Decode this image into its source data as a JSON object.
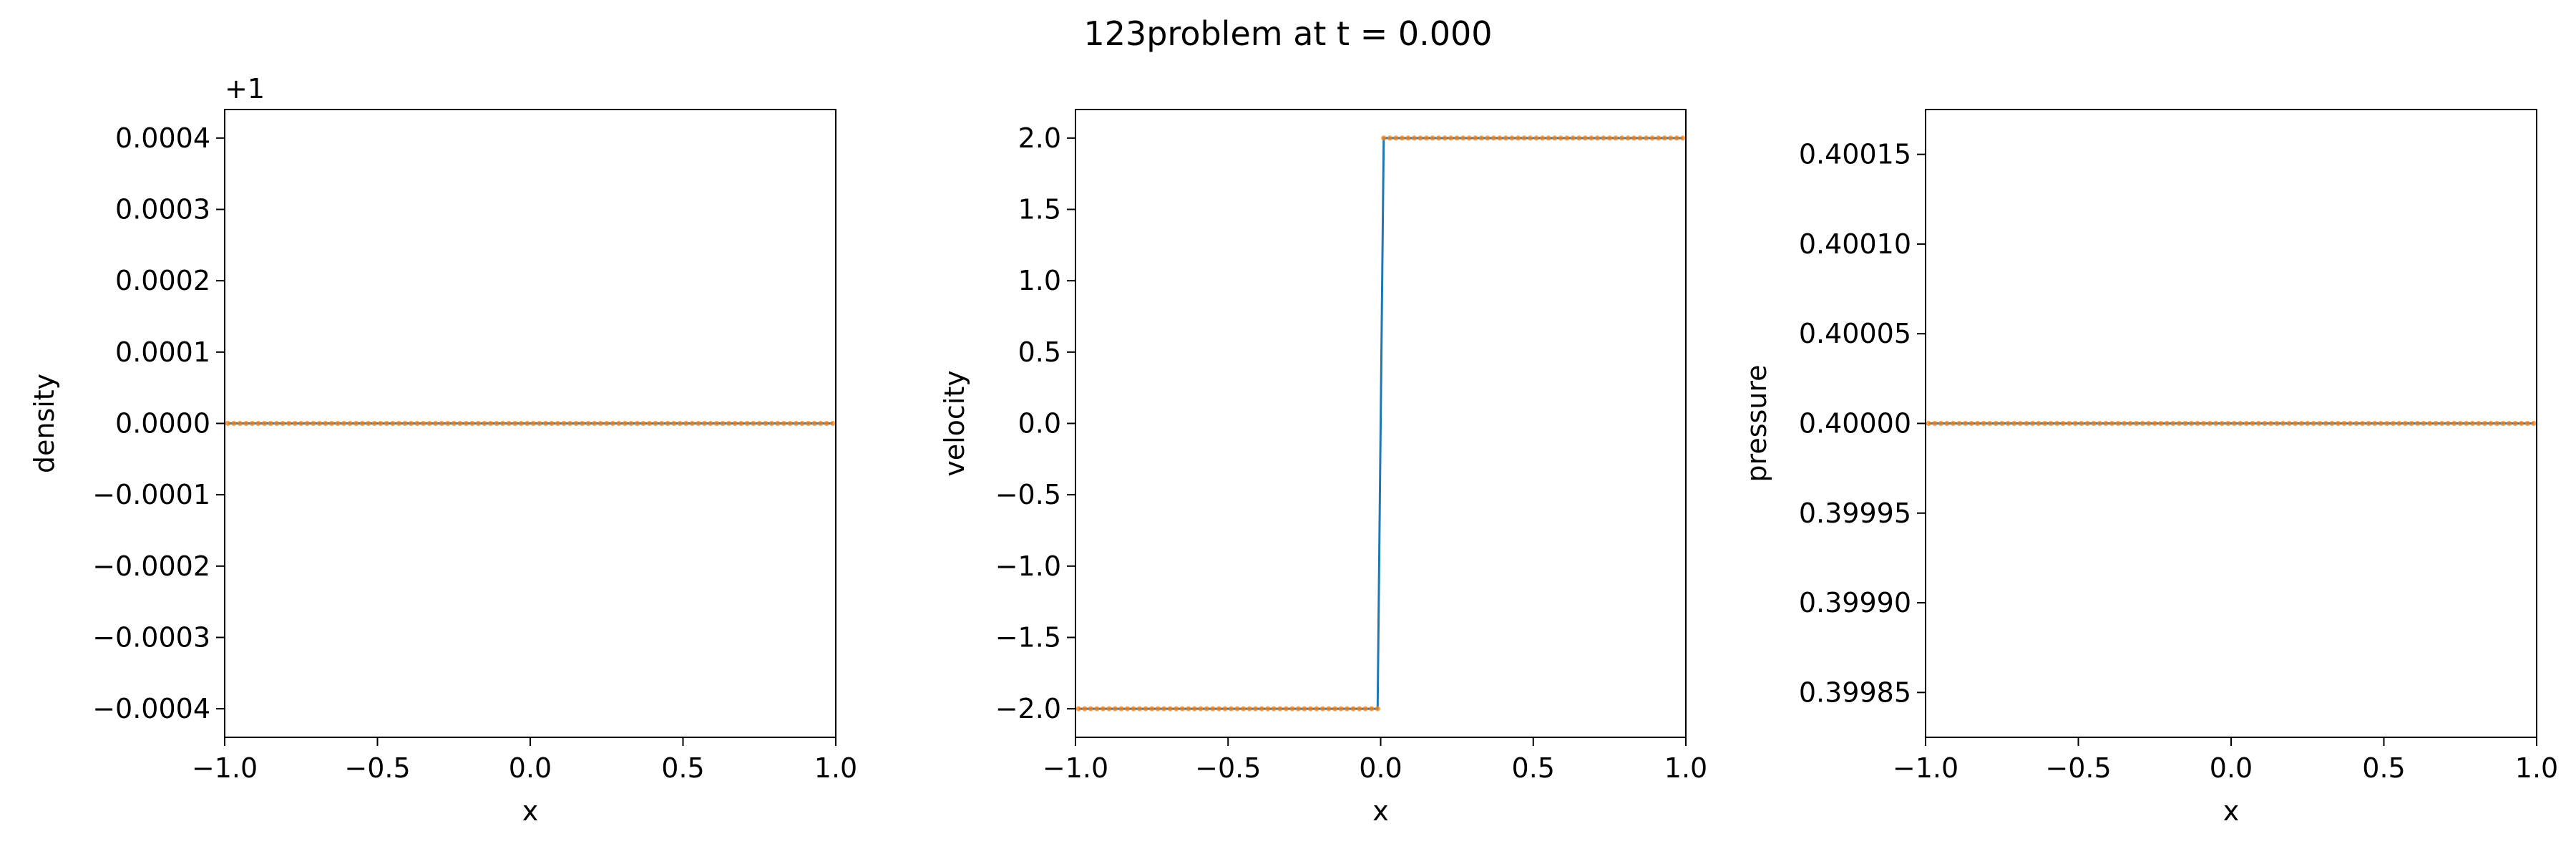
{
  "figure_title": "123problem at t = 0.000",
  "colors": {
    "line": "#1f77b4",
    "markers": "#ff7f0e"
  },
  "chart_data": [
    {
      "type": "line",
      "name": "density",
      "xlabel": "x",
      "ylabel": "density",
      "offset_label": "+1",
      "xlim": [
        -1.0,
        1.0
      ],
      "ylim": [
        -0.00044,
        0.00044
      ],
      "xticks": [
        -1.0,
        -0.5,
        0.0,
        0.5,
        1.0
      ],
      "xtick_labels": [
        "−1.0",
        "−0.5",
        "0.0",
        "0.5",
        "1.0"
      ],
      "yticks": [
        -0.0004,
        -0.0003,
        -0.0002,
        -0.0001,
        0.0,
        0.0001,
        0.0002,
        0.0003,
        0.0004
      ],
      "ytick_labels": [
        "−0.0004",
        "−0.0003",
        "−0.0002",
        "−0.0001",
        "0.0000",
        "0.0001",
        "0.0002",
        "0.0003",
        "0.0004"
      ],
      "grid": false,
      "line": {
        "x": [
          -0.99,
          0.99
        ],
        "y": [
          0.0,
          0.0
        ]
      },
      "points": {
        "x_start": -0.99,
        "x_end": 0.99,
        "count": 100,
        "left_value": 0.0,
        "right_value": 0.0,
        "split": 0.0
      }
    },
    {
      "type": "line",
      "name": "velocity",
      "xlabel": "x",
      "ylabel": "velocity",
      "offset_label": "",
      "xlim": [
        -1.0,
        1.0
      ],
      "ylim": [
        -2.2,
        2.2
      ],
      "xticks": [
        -1.0,
        -0.5,
        0.0,
        0.5,
        1.0
      ],
      "xtick_labels": [
        "−1.0",
        "−0.5",
        "0.0",
        "0.5",
        "1.0"
      ],
      "yticks": [
        -2.0,
        -1.5,
        -1.0,
        -0.5,
        0.0,
        0.5,
        1.0,
        1.5,
        2.0
      ],
      "ytick_labels": [
        "−2.0",
        "−1.5",
        "−1.0",
        "−0.5",
        "0.0",
        "0.5",
        "1.0",
        "1.5",
        "2.0"
      ],
      "grid": false,
      "line": {
        "x": [
          -0.99,
          -0.01,
          0.01,
          0.99
        ],
        "y": [
          -2.0,
          -2.0,
          2.0,
          2.0
        ]
      },
      "points": {
        "x_start": -0.99,
        "x_end": 0.99,
        "count": 100,
        "left_value": -2.0,
        "right_value": 2.0,
        "split": 0.0
      }
    },
    {
      "type": "line",
      "name": "pressure",
      "xlabel": "x",
      "ylabel": "pressure",
      "offset_label": "",
      "xlim": [
        -1.0,
        1.0
      ],
      "ylim": [
        0.399825,
        0.400175
      ],
      "xticks": [
        -1.0,
        -0.5,
        0.0,
        0.5,
        1.0
      ],
      "xtick_labels": [
        "−1.0",
        "−0.5",
        "0.0",
        "0.5",
        "1.0"
      ],
      "yticks": [
        0.39985,
        0.3999,
        0.39995,
        0.4,
        0.40005,
        0.4001,
        0.40015
      ],
      "ytick_labels": [
        "0.39985",
        "0.39990",
        "0.39995",
        "0.40000",
        "0.40005",
        "0.40010",
        "0.40015"
      ],
      "grid": false,
      "line": {
        "x": [
          -0.99,
          0.99
        ],
        "y": [
          0.4,
          0.4
        ]
      },
      "points": {
        "x_start": -0.99,
        "x_end": 0.99,
        "count": 100,
        "left_value": 0.4,
        "right_value": 0.4,
        "split": 0.0
      }
    }
  ]
}
